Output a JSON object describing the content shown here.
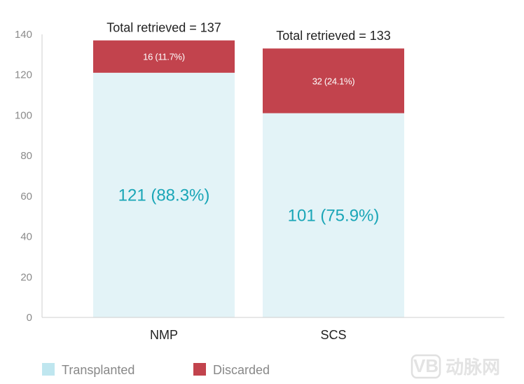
{
  "chart_data": {
    "type": "bar",
    "stacked": true,
    "categories": [
      "NMP",
      "SCS"
    ],
    "series": [
      {
        "name": "Transplanted",
        "color": "#e3f3f7",
        "label_color": "#1aa6b7",
        "values": [
          121,
          101
        ],
        "labels": [
          "121 (88.3%)",
          "101 (75.9%)"
        ]
      },
      {
        "name": "Discarded",
        "color": "#c2434d",
        "label_color": "#ffffff",
        "values": [
          16,
          32
        ],
        "labels": [
          "16 (11.7%)",
          "32 (24.1%)"
        ]
      }
    ],
    "totals": [
      "Total retrieved = 137",
      "Total retrieved = 133"
    ],
    "ylim": [
      0,
      140
    ],
    "yticks": [
      0,
      20,
      40,
      60,
      80,
      100,
      120,
      140
    ],
    "legend_position": "bottom-left",
    "grid": false
  },
  "watermark": {
    "badge": "VB",
    "text": "动脉网"
  }
}
